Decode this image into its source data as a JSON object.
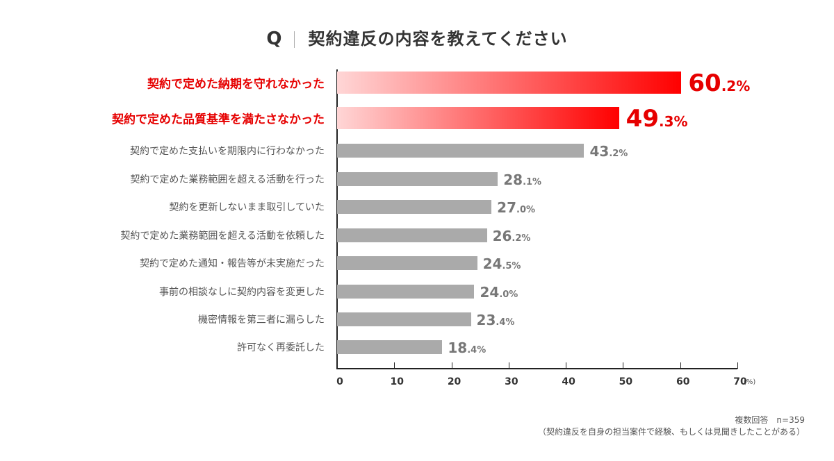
{
  "title": {
    "q": "Q",
    "text": "契約違反の内容を教えてください"
  },
  "chart_data": {
    "type": "bar",
    "orientation": "horizontal",
    "title": "契約違反の内容を教えてください",
    "categories": [
      "契約で定めた納期を守れなかった",
      "契約で定めた品質基準を満たさなかった",
      "契約で定めた支払いを期限内に行わなかった",
      "契約で定めた業務範囲を超える活動を行った",
      "契約を更新しないまま取引していた",
      "契約で定めた業務範囲を超える活動を依頼した",
      "契約で定めた通知・報告等が未実施だった",
      "事前の相談なしに契約内容を変更した",
      "機密情報を第三者に漏らした",
      "許可なく再委託した"
    ],
    "values": [
      60.2,
      49.3,
      43.2,
      28.1,
      27.0,
      26.2,
      24.5,
      24.0,
      23.4,
      18.4
    ],
    "highlight": [
      true,
      true,
      false,
      false,
      false,
      false,
      false,
      false,
      false,
      false
    ],
    "value_labels": [
      {
        "int": "60",
        "dec": ".2%"
      },
      {
        "int": "49",
        "dec": ".3%"
      },
      {
        "int": "43",
        "dec": ".2%"
      },
      {
        "int": "28",
        "dec": ".1%"
      },
      {
        "int": "27",
        "dec": ".0%"
      },
      {
        "int": "26",
        "dec": ".2%"
      },
      {
        "int": "24",
        "dec": ".5%"
      },
      {
        "int": "24",
        "dec": ".0%"
      },
      {
        "int": "23",
        "dec": ".4%"
      },
      {
        "int": "18",
        "dec": ".4%"
      }
    ],
    "xlim": [
      0,
      70
    ],
    "xticks": [
      "0",
      "10",
      "20",
      "30",
      "40",
      "50",
      "60",
      "70"
    ],
    "xunit": "(%)",
    "colors": {
      "highlight": "#e60000",
      "normal": "#aaaaaa"
    }
  },
  "notes": {
    "line1": "複数回答　n=359",
    "line2": "（契約違反を自身の担当案件で経験、もしくは見聞きしたことがある）"
  }
}
